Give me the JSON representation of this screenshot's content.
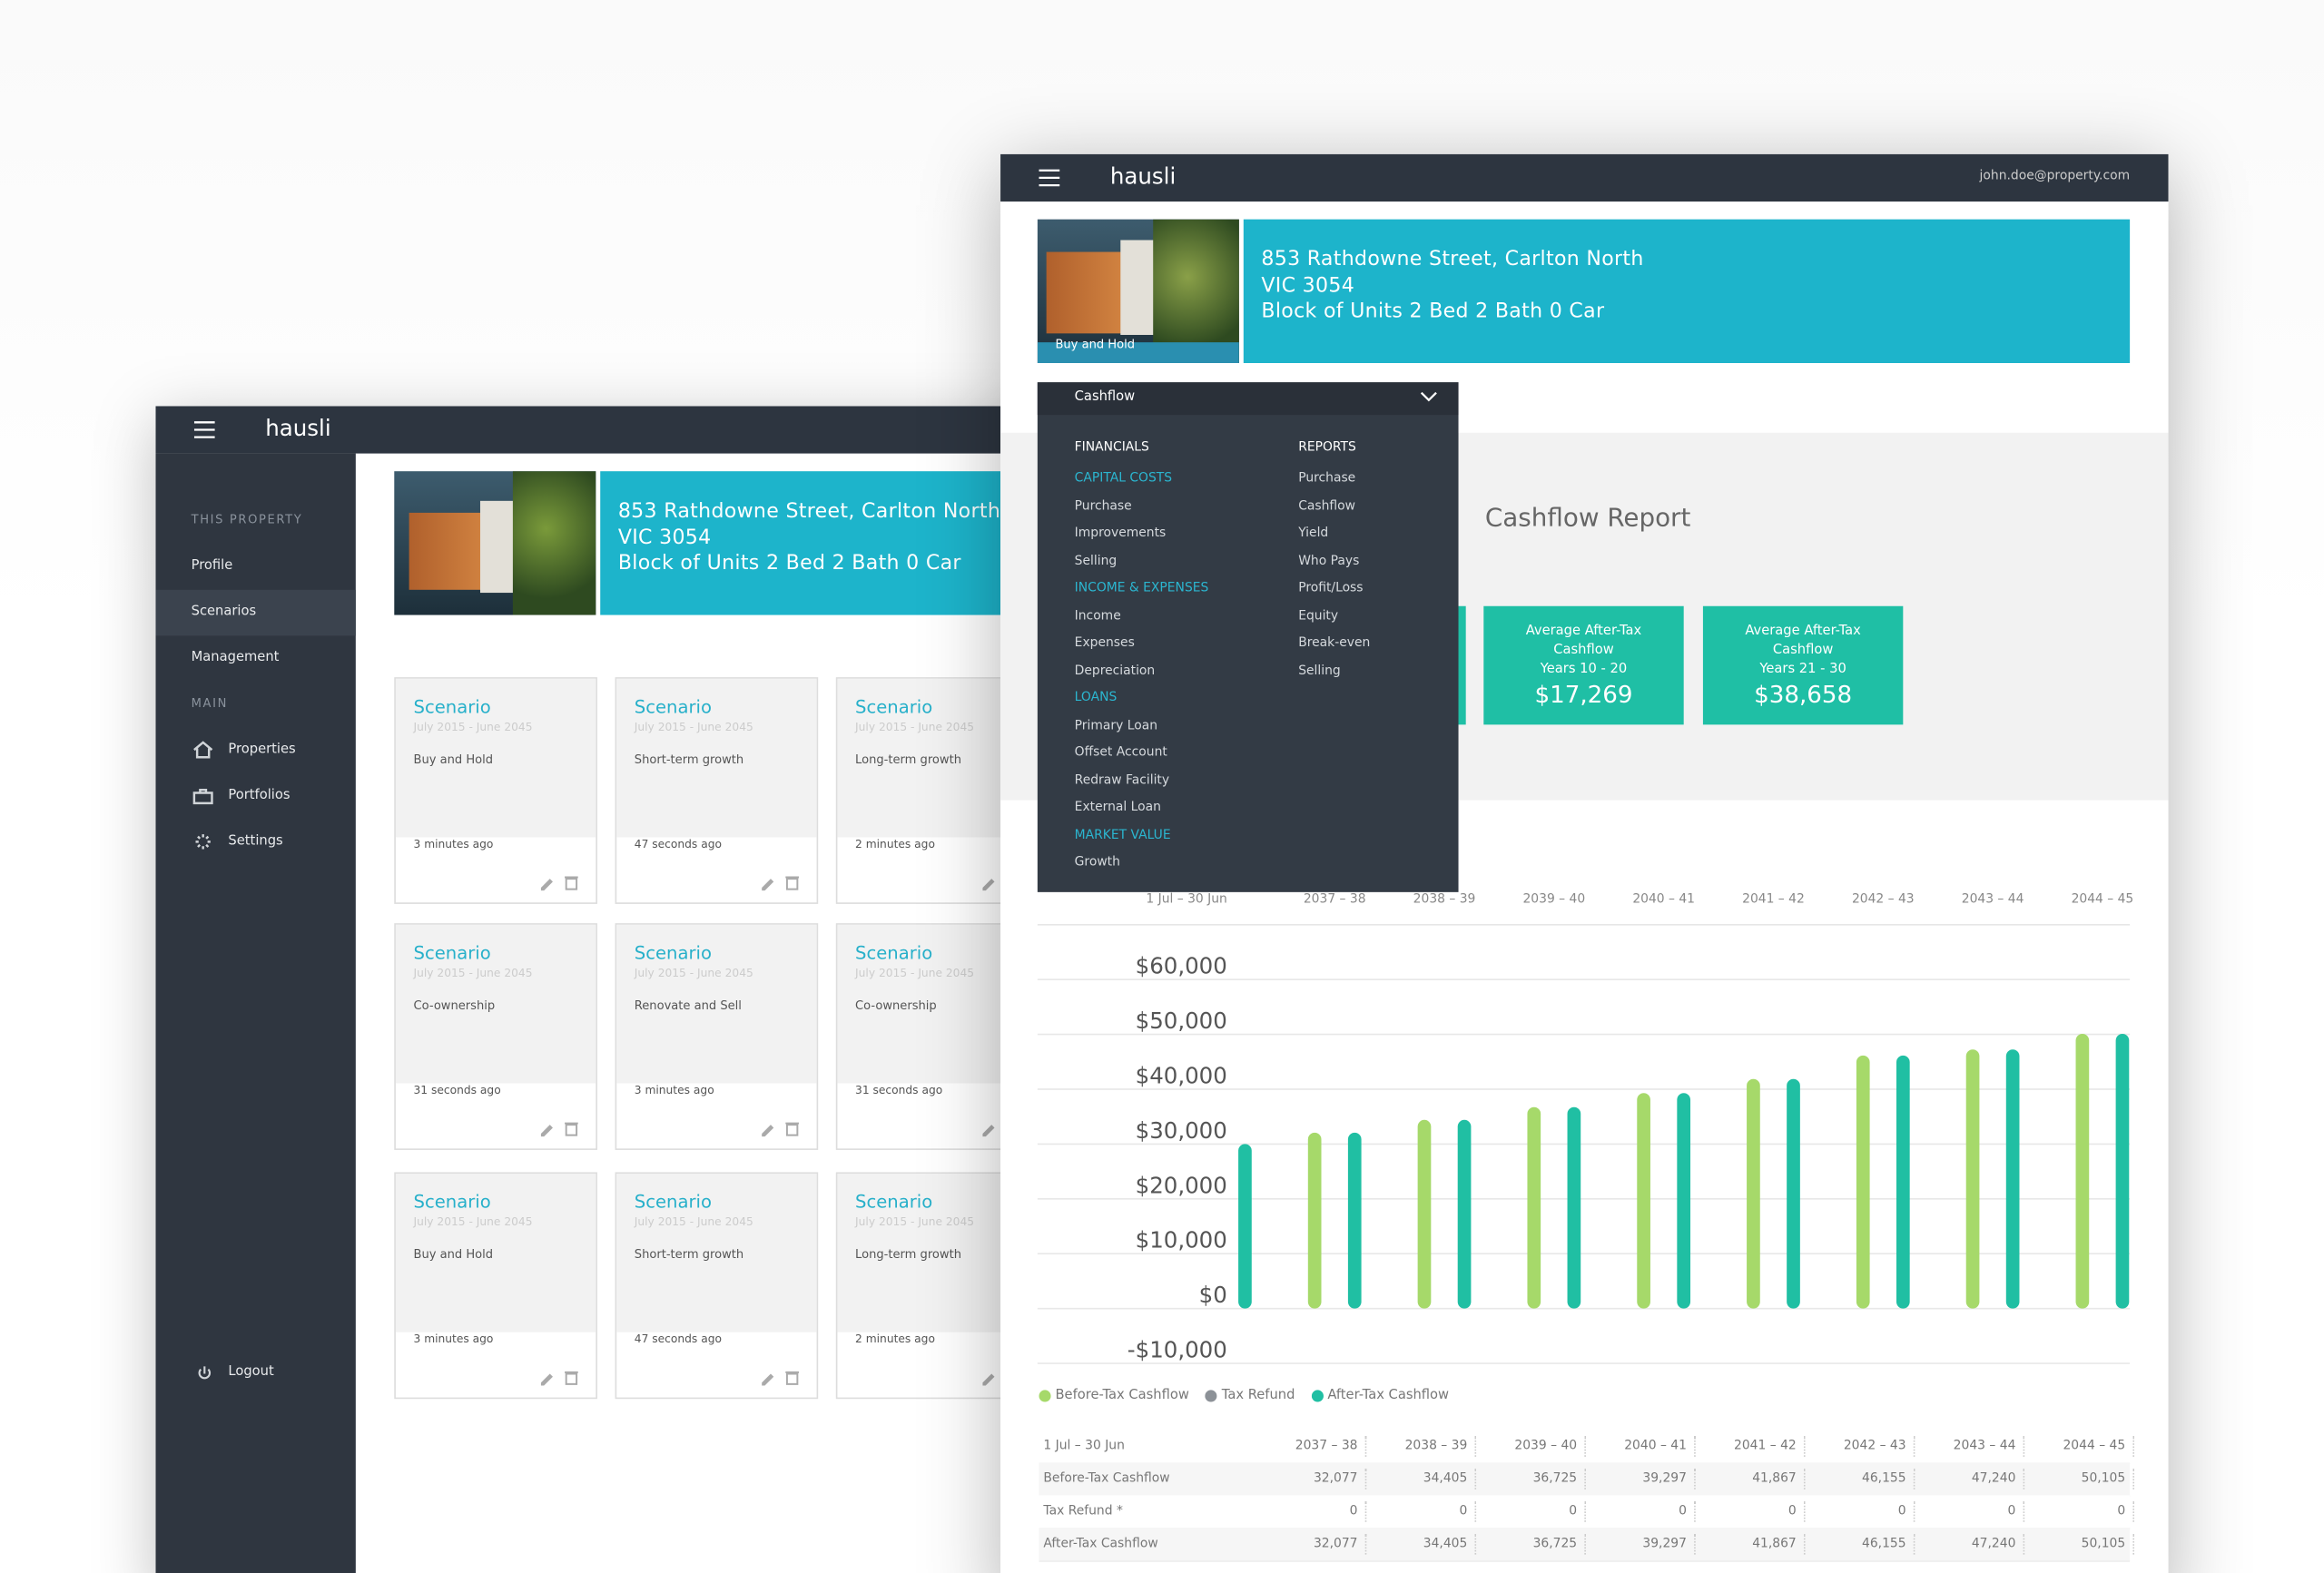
{
  "back": {
    "brand": "hausli",
    "sidebar": {
      "sections": [
        {
          "heading": "THIS PROPERTY",
          "items": [
            "Profile",
            "Scenarios",
            "Management"
          ]
        },
        {
          "heading": "MAIN",
          "items": [
            "Properties",
            "Portfolios",
            "Settings"
          ]
        }
      ],
      "logout": "Logout"
    },
    "property": {
      "lines": [
        "853 Rathdowne Street, Carlton North",
        "VIC 3054",
        "Block of Units 2 Bed 2 Bath 0 Car"
      ]
    },
    "scenarios": [
      {
        "title": "Scenario",
        "period": "July 2015 - June 2045",
        "name": "Buy and Hold",
        "updated": "3 minutes ago"
      },
      {
        "title": "Scenario",
        "period": "July 2015 - June 2045",
        "name": "Short-term growth",
        "updated": "47 seconds ago"
      },
      {
        "title": "Scenario",
        "period": "July 2015 - June 2045",
        "name": "Long-term growth",
        "updated": "2 minutes ago"
      },
      {
        "title": "Scenario",
        "period": "July 2015 - June 2045",
        "name": "Co-ownership",
        "updated": "31 seconds ago"
      },
      {
        "title": "Scenario",
        "period": "July 2015 - June 2045",
        "name": "Renovate and Sell",
        "updated": "3 minutes ago"
      },
      {
        "title": "Scenario",
        "period": "July 2015 - June 2045",
        "name": "Co-ownership",
        "updated": "31 seconds ago"
      },
      {
        "title": "Scenario",
        "period": "July 2015 - June 2045",
        "name": "Buy and Hold",
        "updated": "3 minutes ago"
      },
      {
        "title": "Scenario",
        "period": "July 2015 - June 2045",
        "name": "Short-term growth",
        "updated": "47 seconds ago"
      },
      {
        "title": "Scenario",
        "period": "July 2015 - June 2045",
        "name": "Long-term growth",
        "updated": "2 minutes ago"
      }
    ]
  },
  "front": {
    "brand": "hausli",
    "user": "john.doe@property.com",
    "property": {
      "lines": [
        "853 Rathdowne Street, Carlton North",
        "VIC 3054",
        "Block of Units 2 Bed 2 Bath 0 Car"
      ],
      "tag": "Buy and Hold"
    },
    "dropdown": {
      "selected": "Cashflow",
      "financials": {
        "heading": "FINANCIALS",
        "groups": [
          {
            "heading": "CAPITAL COSTS",
            "items": [
              "Purchase",
              "Improvements",
              "Selling"
            ]
          },
          {
            "heading": "INCOME & EXPENSES",
            "items": [
              "Income",
              "Expenses",
              "Depreciation"
            ]
          },
          {
            "heading": "LOANS",
            "items": [
              "Primary Loan",
              "Offset Account",
              "Redraw Facility",
              "External Loan"
            ]
          },
          {
            "heading": "MARKET VALUE",
            "items": [
              "Growth"
            ]
          }
        ]
      },
      "reports": {
        "heading": "REPORTS",
        "items": [
          "Purchase",
          "Cashflow",
          "Yield",
          "Who Pays",
          "Profit/Loss",
          "Equity",
          "Break-even",
          "Selling"
        ]
      }
    },
    "report_title": "Cashflow Report",
    "summary": [
      {
        "label": "Average After-Tax Cashflow",
        "period": "Years 10 - 20",
        "value": "$17,269"
      },
      {
        "label": "Average After-Tax Cashflow",
        "period": "Years 21 - 30",
        "value": "$38,658"
      }
    ]
  },
  "chart_data": {
    "type": "bar",
    "xlabel": "1 Jul – 30 Jun",
    "categories": [
      null,
      "2037 – 38",
      "2038 – 39",
      "2039 – 40",
      "2040 – 41",
      "2041 – 42",
      "2042 – 43",
      "2043 – 44",
      "2044 – 45"
    ],
    "series": [
      {
        "name": "Before-Tax Cashflow",
        "color": "#a6d96a",
        "values": [
          null,
          32077,
          34405,
          36725,
          39297,
          41867,
          46155,
          47240,
          50105
        ]
      },
      {
        "name": "Tax Refund",
        "color": "#8c9197",
        "values": [
          0,
          0,
          0,
          0,
          0,
          0,
          0,
          0,
          0
        ]
      },
      {
        "name": "After-Tax Cashflow",
        "color": "#20bfa3",
        "values": [
          30000,
          32077,
          34405,
          36725,
          39297,
          41867,
          46155,
          47240,
          50105
        ]
      }
    ],
    "ylim": [
      -10000,
      60000
    ],
    "yticks": [
      {
        "value": -10000,
        "label": "-$10,000"
      },
      {
        "value": 0,
        "label": "$0"
      },
      {
        "value": 10000,
        "label": "$10,000"
      },
      {
        "value": 20000,
        "label": "$20,000"
      },
      {
        "value": 30000,
        "label": "$30,000"
      },
      {
        "value": 40000,
        "label": "$40,000"
      },
      {
        "value": 50000,
        "label": "$50,000"
      },
      {
        "value": 60000,
        "label": "$60,000"
      }
    ],
    "grid": true
  },
  "table": {
    "header": [
      "1 Jul – 30 Jun",
      "2037 – 38",
      "2038 – 39",
      "2039 – 40",
      "2040 – 41",
      "2041 – 42",
      "2042 – 43",
      "2043 – 44",
      "2044 – 45"
    ],
    "rows": [
      [
        "Before-Tax Cashflow",
        "32,077",
        "34,405",
        "36,725",
        "39,297",
        "41,867",
        "46,155",
        "47,240",
        "50,105"
      ],
      [
        "Tax Refund *",
        "0",
        "0",
        "0",
        "0",
        "0",
        "0",
        "0",
        "0"
      ],
      [
        "After-Tax Cashflow",
        "32,077",
        "34,405",
        "36,725",
        "39,297",
        "41,867",
        "46,155",
        "47,240",
        "50,105"
      ]
    ]
  }
}
